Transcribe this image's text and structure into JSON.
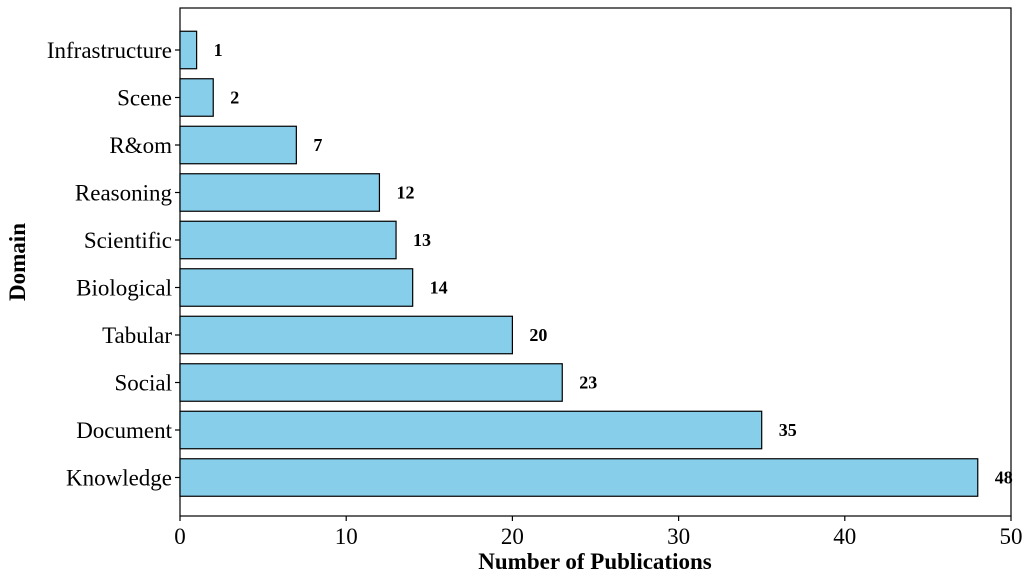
{
  "chart_data": {
    "type": "bar",
    "orientation": "horizontal",
    "title": "",
    "xlabel": "Number of Publications",
    "ylabel": "Domain",
    "categories": [
      "Infrastructure",
      "Scene",
      "R&om",
      "Reasoning",
      "Scientific",
      "Biological",
      "Tabular",
      "Social",
      "Document",
      "Knowledge"
    ],
    "values": [
      1,
      2,
      7,
      12,
      13,
      14,
      20,
      23,
      35,
      48
    ],
    "data_labels": [
      "1",
      "2",
      "7",
      "12",
      "13",
      "14",
      "20",
      "23",
      "35",
      "48"
    ],
    "xlim": [
      0,
      50
    ],
    "xticks": [
      0,
      10,
      20,
      30,
      40,
      50
    ],
    "xtick_labels": [
      "0",
      "10",
      "20",
      "30",
      "40",
      "50"
    ],
    "grid": false,
    "legend": "none",
    "colors": {
      "bar_fill": "#87ceeb",
      "bar_edge": "#000000"
    }
  }
}
